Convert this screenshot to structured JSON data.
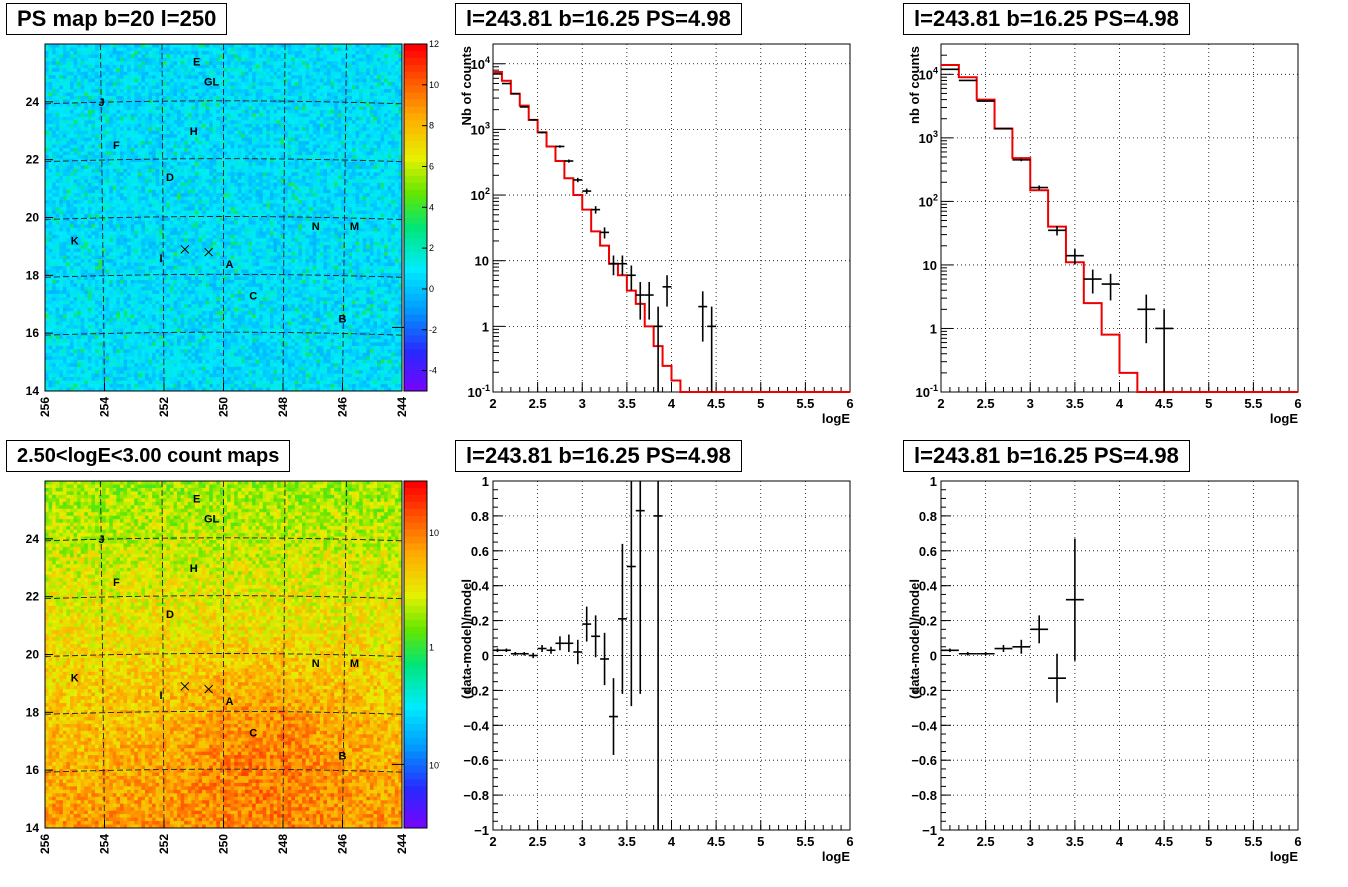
{
  "titles": {
    "psmap": "PS map b=20 l=250",
    "countmap": "2.50<logE<3.00 count maps",
    "spec1": "l=243.81 b=16.25 PS=4.98",
    "spec2": "l=243.81 b=16.25 PS=4.98",
    "res1": "l=243.81 b=16.25 PS=4.98",
    "res2": "l=243.81 b=16.25 PS=4.98"
  },
  "maps": {
    "xticks": [
      "256",
      "254",
      "252",
      "250",
      "248",
      "246",
      "244"
    ],
    "yticks": [
      "24",
      "22",
      "20",
      "18",
      "16",
      "14"
    ],
    "sources": [
      "E",
      "GL",
      "J",
      "H",
      "F",
      "D",
      "N",
      "M",
      "K",
      "I",
      "A",
      "C",
      "B"
    ],
    "ps_colorbar": [
      "12",
      "10",
      "8",
      "6",
      "4",
      "2",
      "0",
      "-2",
      "-4"
    ],
    "count_colorbar": [
      "10",
      "1",
      "10",
      "-1"
    ]
  },
  "chart_data": [
    {
      "type": "heatmap",
      "title": "PS map b=20 l=250",
      "xlim": [
        256,
        244
      ],
      "ylim": [
        14,
        26
      ],
      "colorbar_range": [
        -5,
        12
      ],
      "markers": [
        {
          "label": "E",
          "l": 250.9,
          "b": 25.4
        },
        {
          "label": "GL",
          "l": 250.4,
          "b": 24.7
        },
        {
          "label": "J",
          "l": 254.1,
          "b": 24.0
        },
        {
          "label": "H",
          "l": 251.0,
          "b": 23.0
        },
        {
          "label": "F",
          "l": 253.6,
          "b": 22.5
        },
        {
          "label": "D",
          "l": 251.8,
          "b": 21.4
        },
        {
          "label": "N",
          "l": 246.9,
          "b": 19.7
        },
        {
          "label": "M",
          "l": 245.6,
          "b": 19.7
        },
        {
          "label": "K",
          "l": 255.0,
          "b": 19.2
        },
        {
          "label": "I",
          "l": 252.1,
          "b": 18.6
        },
        {
          "label": "A",
          "l": 249.8,
          "b": 18.4
        },
        {
          "label": "C",
          "l": 249.0,
          "b": 17.3
        },
        {
          "label": "B",
          "l": 246.0,
          "b": 16.5
        }
      ]
    },
    {
      "type": "heatmap",
      "title": "2.50<logE<3.00 count maps",
      "xlim": [
        256,
        244
      ],
      "ylim": [
        14,
        26
      ],
      "colorbar_scale": "log"
    },
    {
      "type": "line",
      "title": "l=243.81 b=16.25 PS=4.98",
      "xlabel": "logE",
      "ylabel": "Nb of counts",
      "xlim": [
        2,
        6
      ],
      "ylim": [
        0.1,
        20000
      ],
      "yscale": "log",
      "xticks": [
        "2",
        "2.5",
        "3",
        "3.5",
        "4",
        "4.5",
        "5",
        "5.5",
        "6"
      ],
      "yticks": [
        "10^-1",
        "1",
        "10",
        "10^2",
        "10^3",
        "10^4"
      ],
      "model": {
        "edges": [
          2.0,
          2.1,
          2.2,
          2.3,
          2.4,
          2.5,
          2.6,
          2.7,
          2.8,
          2.9,
          3.0,
          3.1,
          3.2,
          3.3,
          3.4,
          3.5,
          3.6,
          3.7,
          3.8,
          3.9,
          4.0,
          4.1,
          4.2,
          6.0
        ],
        "values": [
          7500,
          5500,
          3500,
          2300,
          1400,
          900,
          550,
          330,
          180,
          100,
          60,
          28,
          17,
          9,
          6,
          3.5,
          2.2,
          1.0,
          0.5,
          0.25,
          0.15,
          0.1,
          0.1
        ]
      },
      "data": [
        {
          "x": 2.05,
          "y": 7000,
          "err": 0
        },
        {
          "x": 2.15,
          "y": 5000,
          "err": 0
        },
        {
          "x": 2.25,
          "y": 3500,
          "err": 0
        },
        {
          "x": 2.35,
          "y": 2200,
          "err": 0
        },
        {
          "x": 2.45,
          "y": 1400,
          "err": 0
        },
        {
          "x": 2.55,
          "y": 900,
          "err": 0
        },
        {
          "x": 2.75,
          "y": 550,
          "err": 0
        },
        {
          "x": 2.85,
          "y": 330,
          "err": 0
        },
        {
          "x": 2.95,
          "y": 170,
          "err": 0
        },
        {
          "x": 3.05,
          "y": 115,
          "err": 0
        },
        {
          "x": 3.15,
          "y": 60,
          "err": 0
        },
        {
          "x": 3.25,
          "y": 27,
          "err": 0
        },
        {
          "x": 3.35,
          "y": 9,
          "err": 0
        },
        {
          "x": 3.45,
          "y": 9,
          "err": 0
        },
        {
          "x": 3.55,
          "y": 6,
          "err": 0
        },
        {
          "x": 3.65,
          "y": 3,
          "err": 0
        },
        {
          "x": 3.75,
          "y": 3,
          "err": 0
        },
        {
          "x": 3.85,
          "y": 1,
          "err": 0
        },
        {
          "x": 3.95,
          "y": 4,
          "err": 0
        },
        {
          "x": 4.35,
          "y": 2,
          "err": 0
        },
        {
          "x": 4.45,
          "y": 1,
          "err": 0
        }
      ]
    },
    {
      "type": "line",
      "title": "l=243.81 b=16.25 PS=4.98",
      "xlabel": "logE",
      "ylabel": "nb of counts",
      "xlim": [
        2,
        6
      ],
      "ylim": [
        0.1,
        30000
      ],
      "yscale": "log",
      "xticks": [
        "2",
        "2.5",
        "3",
        "3.5",
        "4",
        "4.5",
        "5",
        "5.5",
        "6"
      ],
      "yticks": [
        "10^-1",
        "1",
        "10",
        "10^2",
        "10^3",
        "10^4"
      ],
      "model": {
        "edges": [
          2.0,
          2.2,
          2.4,
          2.6,
          2.8,
          3.0,
          3.2,
          3.4,
          3.6,
          3.8,
          4.0,
          4.2,
          6.0
        ],
        "values": [
          14000,
          9000,
          4000,
          1400,
          480,
          150,
          40,
          11,
          2.5,
          0.8,
          0.2,
          0.1
        ]
      },
      "data": [
        {
          "x": 2.1,
          "y": 12000,
          "err": 0
        },
        {
          "x": 2.3,
          "y": 8000,
          "err": 0
        },
        {
          "x": 2.5,
          "y": 3800,
          "err": 0
        },
        {
          "x": 2.7,
          "y": 1400,
          "err": 0
        },
        {
          "x": 2.9,
          "y": 450,
          "err": 0
        },
        {
          "x": 3.1,
          "y": 165,
          "err": 0
        },
        {
          "x": 3.3,
          "y": 35,
          "err": 0
        },
        {
          "x": 3.5,
          "y": 14,
          "err": 0
        },
        {
          "x": 3.7,
          "y": 6,
          "err": 0
        },
        {
          "x": 3.9,
          "y": 5,
          "err": 0
        },
        {
          "x": 4.3,
          "y": 2,
          "err": 0
        },
        {
          "x": 4.5,
          "y": 1,
          "err": 0
        }
      ]
    },
    {
      "type": "scatter",
      "title": "l=243.81 b=16.25 PS=4.98",
      "xlabel": "logE",
      "ylabel": "(data-model)/model",
      "xlim": [
        2,
        6
      ],
      "ylim": [
        -1,
        1
      ],
      "xticks": [
        "2",
        "2.5",
        "3",
        "3.5",
        "4",
        "4.5",
        "5",
        "5.5",
        "6"
      ],
      "yticks": [
        "1",
        "0.8",
        "0.6",
        "0.4",
        "0.2",
        "0",
        "-0.2",
        "-0.4",
        "-0.6",
        "-0.8",
        "-1"
      ],
      "data": [
        {
          "x": 2.05,
          "y": 0.03,
          "err": 0.01
        },
        {
          "x": 2.15,
          "y": 0.03,
          "err": 0.01
        },
        {
          "x": 2.25,
          "y": 0.01,
          "err": 0.01
        },
        {
          "x": 2.35,
          "y": 0.01,
          "err": 0.01
        },
        {
          "x": 2.45,
          "y": 0.0,
          "err": 0.015
        },
        {
          "x": 2.55,
          "y": 0.04,
          "err": 0.02
        },
        {
          "x": 2.65,
          "y": 0.03,
          "err": 0.02
        },
        {
          "x": 2.75,
          "y": 0.07,
          "err": 0.04
        },
        {
          "x": 2.85,
          "y": 0.07,
          "err": 0.05
        },
        {
          "x": 2.95,
          "y": 0.02,
          "err": 0.07
        },
        {
          "x": 3.05,
          "y": 0.18,
          "err": 0.1
        },
        {
          "x": 3.15,
          "y": 0.11,
          "err": 0.12
        },
        {
          "x": 3.25,
          "y": -0.02,
          "err": 0.15
        },
        {
          "x": 3.35,
          "y": -0.35,
          "err": 0.22
        },
        {
          "x": 3.45,
          "y": 0.21,
          "err": 0.43
        },
        {
          "x": 3.55,
          "y": 0.51,
          "err": 0.8
        },
        {
          "x": 3.65,
          "y": 0.83,
          "err": 1.05
        },
        {
          "x": 3.85,
          "y": 0.8,
          "err": 2.0
        }
      ]
    },
    {
      "type": "scatter",
      "title": "l=243.81 b=16.25 PS=4.98",
      "xlabel": "logE",
      "ylabel": "(data-model)/model",
      "xlim": [
        2,
        6
      ],
      "ylim": [
        -1,
        1
      ],
      "xticks": [
        "2",
        "2.5",
        "3",
        "3.5",
        "4",
        "4.5",
        "5",
        "5.5",
        "6"
      ],
      "yticks": [
        "1",
        "0.8",
        "0.6",
        "0.4",
        "0.2",
        "0",
        "-0.2",
        "-0.4",
        "-0.6",
        "-0.8",
        "-1"
      ],
      "data": [
        {
          "x": 2.1,
          "y": 0.03,
          "err": 0.01
        },
        {
          "x": 2.3,
          "y": 0.01,
          "err": 0.01
        },
        {
          "x": 2.5,
          "y": 0.01,
          "err": 0.01
        },
        {
          "x": 2.7,
          "y": 0.04,
          "err": 0.02
        },
        {
          "x": 2.9,
          "y": 0.05,
          "err": 0.04
        },
        {
          "x": 3.1,
          "y": 0.15,
          "err": 0.08
        },
        {
          "x": 3.3,
          "y": -0.13,
          "err": 0.14
        },
        {
          "x": 3.5,
          "y": 0.32,
          "err": 0.35
        }
      ]
    }
  ]
}
